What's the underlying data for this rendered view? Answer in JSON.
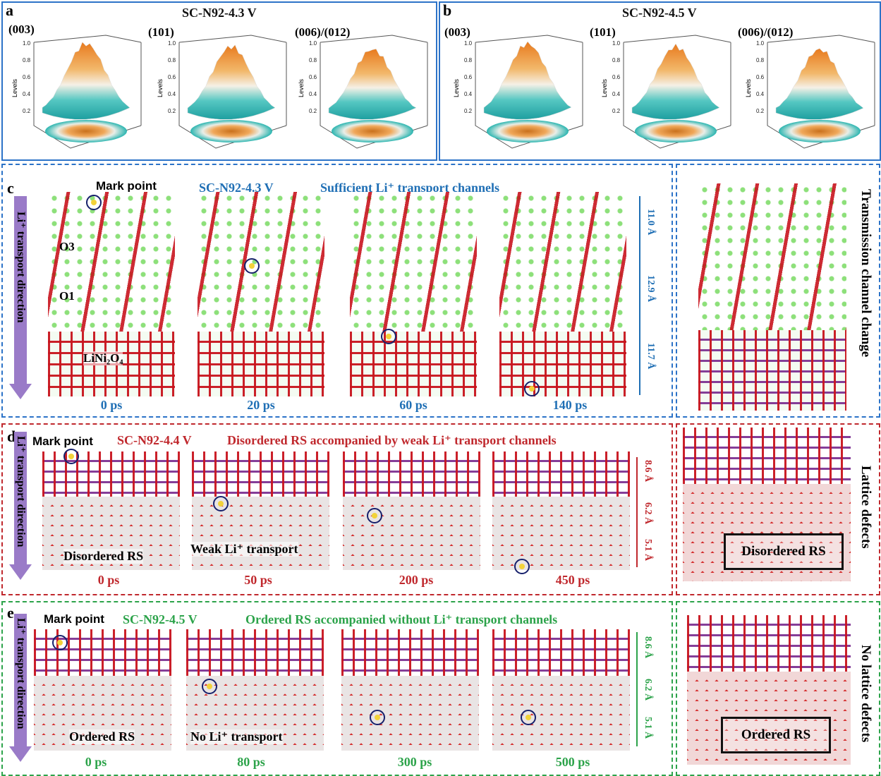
{
  "panel_a": {
    "letter": "a",
    "title": "SC-N92-4.3 V",
    "peaks": [
      "(003)",
      "(101)",
      "(006)/(012)"
    ]
  },
  "panel_b": {
    "letter": "b",
    "title": "SC-N92-4.5 V",
    "peaks": [
      "(003)",
      "(101)",
      "(006)/(012)"
    ]
  },
  "surface_plot": {
    "zlabel": "Levels",
    "zticks": [
      "1.0",
      "0.8",
      "0.6",
      "0.4",
      "0.2"
    ],
    "colors": {
      "top": "#e87a1e",
      "mid": "#f5f0e6",
      "bottom": "#2bb5b0"
    }
  },
  "panel_c": {
    "letter": "c",
    "mark": "Mark point",
    "condition": "SC-N92-4.3  V",
    "note": "Sufficient Li⁺ transport channels",
    "arrow_label": "Li⁺ transport direction",
    "layer_labels": [
      "O3",
      "O1",
      "LiNi₂O₄"
    ],
    "times": [
      "0 ps",
      "20 ps",
      "60 ps",
      "140 ps"
    ],
    "dims": [
      "11.0 Å",
      "12.9 Å",
      "11.7 Å"
    ],
    "side_label": "Transmission channel change",
    "color": "#1f6fb5"
  },
  "panel_d": {
    "letter": "d",
    "mark": "Mark point",
    "condition": "SC-N92-4.4  V",
    "note": "Disordered RS accompanied by weak Li⁺ transport channels",
    "arrow_label": "Li⁺ transport direction",
    "inset_labels": [
      "Disordered RS",
      "Weak Li⁺ transport"
    ],
    "times": [
      "0 ps",
      "50 ps",
      "200 ps",
      "450 ps"
    ],
    "dims": [
      "8.6 Å",
      "6.2 Å",
      "5.1 Å"
    ],
    "side_label": "Lattice defects",
    "box_label": "Disordered  RS",
    "color": "#c0282d"
  },
  "panel_e": {
    "letter": "e",
    "mark": "Mark point",
    "condition": "SC-N92-4.5  V",
    "note": "Ordered RS accompanied without Li⁺ transport channels",
    "arrow_label": "Li⁺ transport direction",
    "inset_labels": [
      "Ordered RS",
      "No Li⁺ transport"
    ],
    "times": [
      "0 ps",
      "80 ps",
      "300 ps",
      "500 ps"
    ],
    "dims": [
      "8.6 Å",
      "6.2 Å",
      "5.1 Å"
    ],
    "side_label": "No lattice defects",
    "box_label": "Ordered  RS",
    "color": "#2ca34a"
  }
}
